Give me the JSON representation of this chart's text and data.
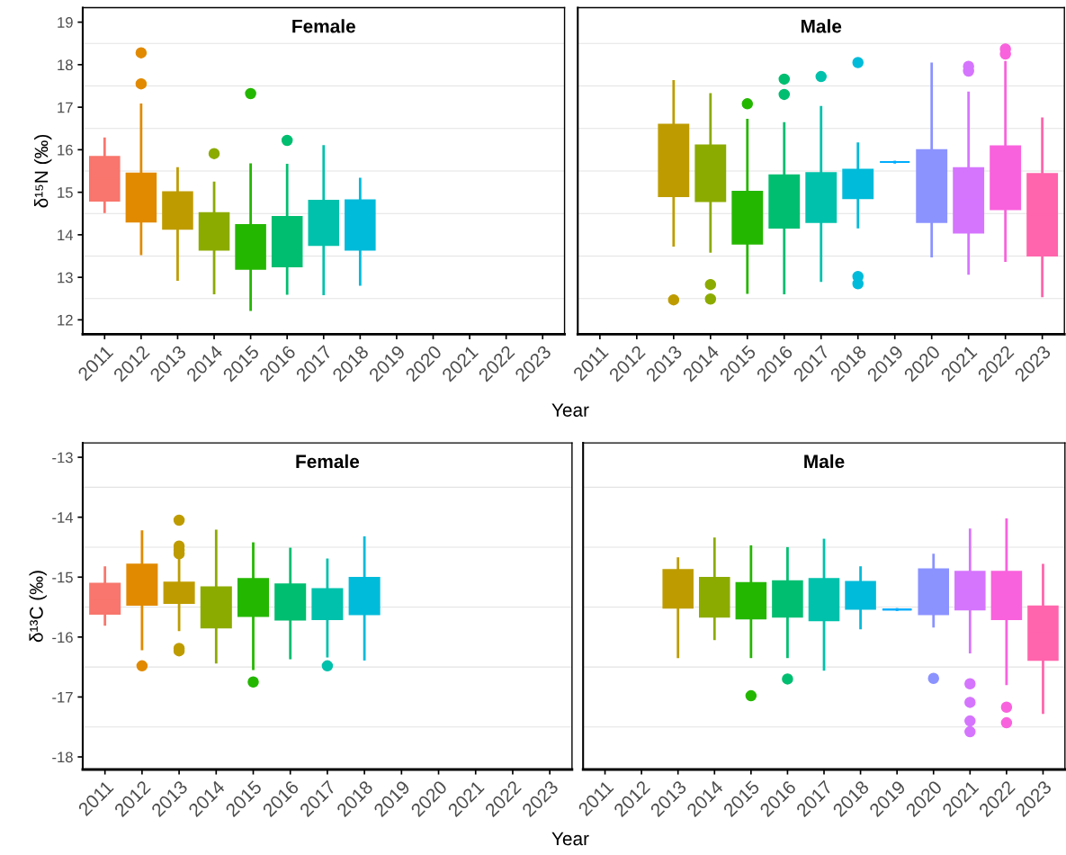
{
  "chart_data": [
    {
      "type": "box",
      "title": "Female",
      "ylabel": "δ¹⁵N (‰)",
      "xlabel": "Year",
      "categories": [
        "2011",
        "2012",
        "2013",
        "2014",
        "2015",
        "2016",
        "2017",
        "2018",
        "2019",
        "2020",
        "2021",
        "2022",
        "2023"
      ],
      "colors": [
        "#F8766D",
        "#E18A00",
        "#BE9C00",
        "#8CAB00",
        "#24B700",
        "#00BE70",
        "#00C1AB",
        "#00BBDA",
        "#00ACFC",
        "#8B93FF",
        "#D575FE",
        "#F962DD",
        "#FF65AC"
      ],
      "ylim": [
        11.66,
        19.34
      ],
      "yticks": [
        12,
        13,
        14,
        15,
        16,
        17,
        18,
        19
      ],
      "grid": "y",
      "boxes": [
        {
          "low": 14.54,
          "q1": 14.8,
          "median": 15.32,
          "q3": 15.83,
          "high": 16.26
        },
        {
          "low": 13.55,
          "q1": 14.31,
          "median": 14.88,
          "q3": 15.44,
          "high": 17.06,
          "outliers": [
            17.55,
            18.28
          ]
        },
        {
          "low": 12.95,
          "q1": 14.14,
          "median": 14.57,
          "q3": 15.0,
          "high": 15.56
        },
        {
          "low": 12.63,
          "q1": 13.65,
          "median": 14.08,
          "q3": 14.51,
          "high": 15.22,
          "outliers": [
            15.91
          ]
        },
        {
          "low": 12.24,
          "q1": 13.2,
          "median": 13.72,
          "q3": 14.23,
          "high": 15.65,
          "outliers": [
            17.32
          ]
        },
        {
          "low": 12.62,
          "q1": 13.26,
          "median": 13.84,
          "q3": 14.42,
          "high": 15.64,
          "outliers": [
            16.22
          ]
        },
        {
          "low": 12.61,
          "q1": 13.76,
          "median": 14.28,
          "q3": 14.8,
          "high": 16.08
        },
        {
          "low": 12.83,
          "q1": 13.65,
          "median": 14.23,
          "q3": 14.81,
          "high": 15.31
        },
        null,
        null,
        null,
        null,
        null
      ]
    },
    {
      "type": "box",
      "title": "Male",
      "categories": [
        "2011",
        "2012",
        "2013",
        "2014",
        "2015",
        "2016",
        "2017",
        "2018",
        "2019",
        "2020",
        "2021",
        "2022",
        "2023"
      ],
      "colors": [
        "#F8766D",
        "#E18A00",
        "#BE9C00",
        "#8CAB00",
        "#24B700",
        "#00BE70",
        "#00C1AB",
        "#00BBDA",
        "#00ACFC",
        "#8B93FF",
        "#D575FE",
        "#F962DD",
        "#FF65AC"
      ],
      "ylim": [
        11.66,
        19.34
      ],
      "yticks": [
        12,
        13,
        14,
        15,
        16,
        17,
        18,
        19
      ],
      "grid": "y",
      "tick_labels": "x",
      "boxes": [
        null,
        null,
        {
          "low": 13.75,
          "q1": 14.91,
          "median": 15.75,
          "q3": 16.59,
          "high": 17.61,
          "outliers": [
            12.47
          ]
        },
        {
          "low": 13.61,
          "q1": 14.79,
          "median": 15.45,
          "q3": 16.1,
          "high": 17.3,
          "outliers": [
            12.49,
            12.83
          ]
        },
        {
          "low": 12.64,
          "q1": 13.79,
          "median": 14.4,
          "q3": 15.01,
          "high": 16.7,
          "outliers": [
            17.08
          ]
        },
        {
          "low": 12.63,
          "q1": 14.17,
          "median": 14.79,
          "q3": 15.4,
          "high": 16.62,
          "outliers": [
            17.3,
            17.66
          ]
        },
        {
          "low": 12.92,
          "q1": 14.3,
          "median": 14.88,
          "q3": 15.45,
          "high": 17.0,
          "outliers": [
            17.72
          ]
        },
        {
          "low": 14.18,
          "q1": 14.86,
          "median": 15.2,
          "q3": 15.53,
          "high": 16.14,
          "outliers": [
            12.85,
            13.02,
            18.05
          ]
        },
        {
          "low": 15.71,
          "q1": 15.71,
          "median": 15.71,
          "q3": 15.71,
          "high": 15.71
        },
        {
          "low": 13.5,
          "q1": 14.3,
          "median": 15.15,
          "q3": 15.99,
          "high": 18.02
        },
        {
          "low": 13.09,
          "q1": 14.05,
          "median": 14.81,
          "q3": 15.57,
          "high": 17.34,
          "outliers": [
            17.85,
            17.96
          ]
        },
        {
          "low": 13.39,
          "q1": 14.6,
          "median": 15.34,
          "q3": 16.08,
          "high": 18.06,
          "outliers": [
            18.25,
            18.37
          ]
        },
        {
          "low": 12.56,
          "q1": 13.51,
          "median": 14.47,
          "q3": 15.43,
          "high": 16.73
        }
      ]
    },
    {
      "type": "box",
      "title": "Female",
      "ylabel": "δ¹³C (‰)",
      "xlabel": "Year",
      "categories": [
        "2011",
        "2012",
        "2013",
        "2014",
        "2015",
        "2016",
        "2017",
        "2018",
        "2019",
        "2020",
        "2021",
        "2022",
        "2023"
      ],
      "colors": [
        "#F8766D",
        "#E18A00",
        "#BE9C00",
        "#8CAB00",
        "#24B700",
        "#00BE70",
        "#00C1AB",
        "#00BBDA",
        "#00ACFC",
        "#8B93FF",
        "#D575FE",
        "#F962DD",
        "#FF65AC"
      ],
      "ylim": [
        -18.21,
        -12.76
      ],
      "yticks": [
        -18,
        -17,
        -16,
        -15,
        -14,
        -13
      ],
      "grid": "y",
      "boxes": [
        {
          "low": -15.79,
          "q1": -15.61,
          "median": -15.36,
          "q3": -15.11,
          "high": -14.84
        },
        {
          "low": -16.2,
          "q1": -15.46,
          "median": -15.13,
          "q3": -14.79,
          "high": -14.24,
          "outliers": [
            -16.48
          ]
        },
        {
          "low": -15.88,
          "q1": -15.43,
          "median": -15.26,
          "q3": -15.09,
          "high": -14.68,
          "outliers": [
            -16.23,
            -16.19,
            -14.61,
            -14.55,
            -14.48,
            -14.05
          ]
        },
        {
          "low": -16.42,
          "q1": -15.84,
          "median": -15.51,
          "q3": -15.17,
          "high": -14.23
        },
        {
          "low": -16.53,
          "q1": -15.65,
          "median": -15.34,
          "q3": -15.03,
          "high": -14.44,
          "outliers": [
            -16.75
          ]
        },
        {
          "low": -16.35,
          "q1": -15.71,
          "median": -15.42,
          "q3": -15.12,
          "high": -14.53
        },
        {
          "low": -16.32,
          "q1": -15.7,
          "median": -15.45,
          "q3": -15.2,
          "high": -14.71,
          "outliers": [
            -16.48
          ]
        },
        {
          "low": -16.37,
          "q1": -15.62,
          "median": -15.32,
          "q3": -15.01,
          "high": -14.34
        },
        null,
        null,
        null,
        null,
        null
      ]
    },
    {
      "type": "box",
      "title": "Male",
      "categories": [
        "2011",
        "2012",
        "2013",
        "2014",
        "2015",
        "2016",
        "2017",
        "2018",
        "2019",
        "2020",
        "2021",
        "2022",
        "2023"
      ],
      "colors": [
        "#F8766D",
        "#E18A00",
        "#BE9C00",
        "#8CAB00",
        "#24B700",
        "#00BE70",
        "#00C1AB",
        "#00BBDA",
        "#00ACFC",
        "#8B93FF",
        "#D575FE",
        "#F962DD",
        "#FF65AC"
      ],
      "ylim": [
        -18.21,
        -12.76
      ],
      "yticks": [
        -18,
        -17,
        -16,
        -15,
        -14,
        -13
      ],
      "grid": "y",
      "tick_labels": "x",
      "boxes": [
        null,
        null,
        {
          "low": -16.33,
          "q1": -15.51,
          "median": -15.2,
          "q3": -14.88,
          "high": -14.69
        },
        {
          "low": -16.03,
          "q1": -15.66,
          "median": -15.34,
          "q3": -15.01,
          "high": -14.36
        },
        {
          "low": -16.33,
          "q1": -15.69,
          "median": -15.4,
          "q3": -15.1,
          "high": -14.49,
          "outliers": [
            -16.98
          ]
        },
        {
          "low": -16.33,
          "q1": -15.66,
          "median": -15.37,
          "q3": -15.07,
          "high": -14.52,
          "outliers": [
            -16.7
          ]
        },
        {
          "low": -16.54,
          "q1": -15.72,
          "median": -15.38,
          "q3": -15.03,
          "high": -14.38
        },
        {
          "low": -15.85,
          "q1": -15.53,
          "median": -15.31,
          "q3": -15.08,
          "high": -14.84
        },
        {
          "low": -15.54,
          "q1": -15.54,
          "median": -15.54,
          "q3": -15.54,
          "high": -15.54
        },
        {
          "low": -15.82,
          "q1": -15.62,
          "median": -15.25,
          "q3": -14.87,
          "high": -14.63,
          "outliers": [
            -16.69
          ]
        },
        {
          "low": -16.25,
          "q1": -15.54,
          "median": -15.23,
          "q3": -14.91,
          "high": -14.21,
          "outliers": [
            -17.58,
            -17.4,
            -17.09,
            -16.78
          ]
        },
        {
          "low": -16.78,
          "q1": -15.7,
          "median": -15.31,
          "q3": -14.91,
          "high": -14.04,
          "outliers": [
            -17.43,
            -17.17
          ]
        },
        {
          "low": -17.26,
          "q1": -16.38,
          "median": -15.94,
          "q3": -15.49,
          "high": -14.8
        }
      ]
    }
  ]
}
